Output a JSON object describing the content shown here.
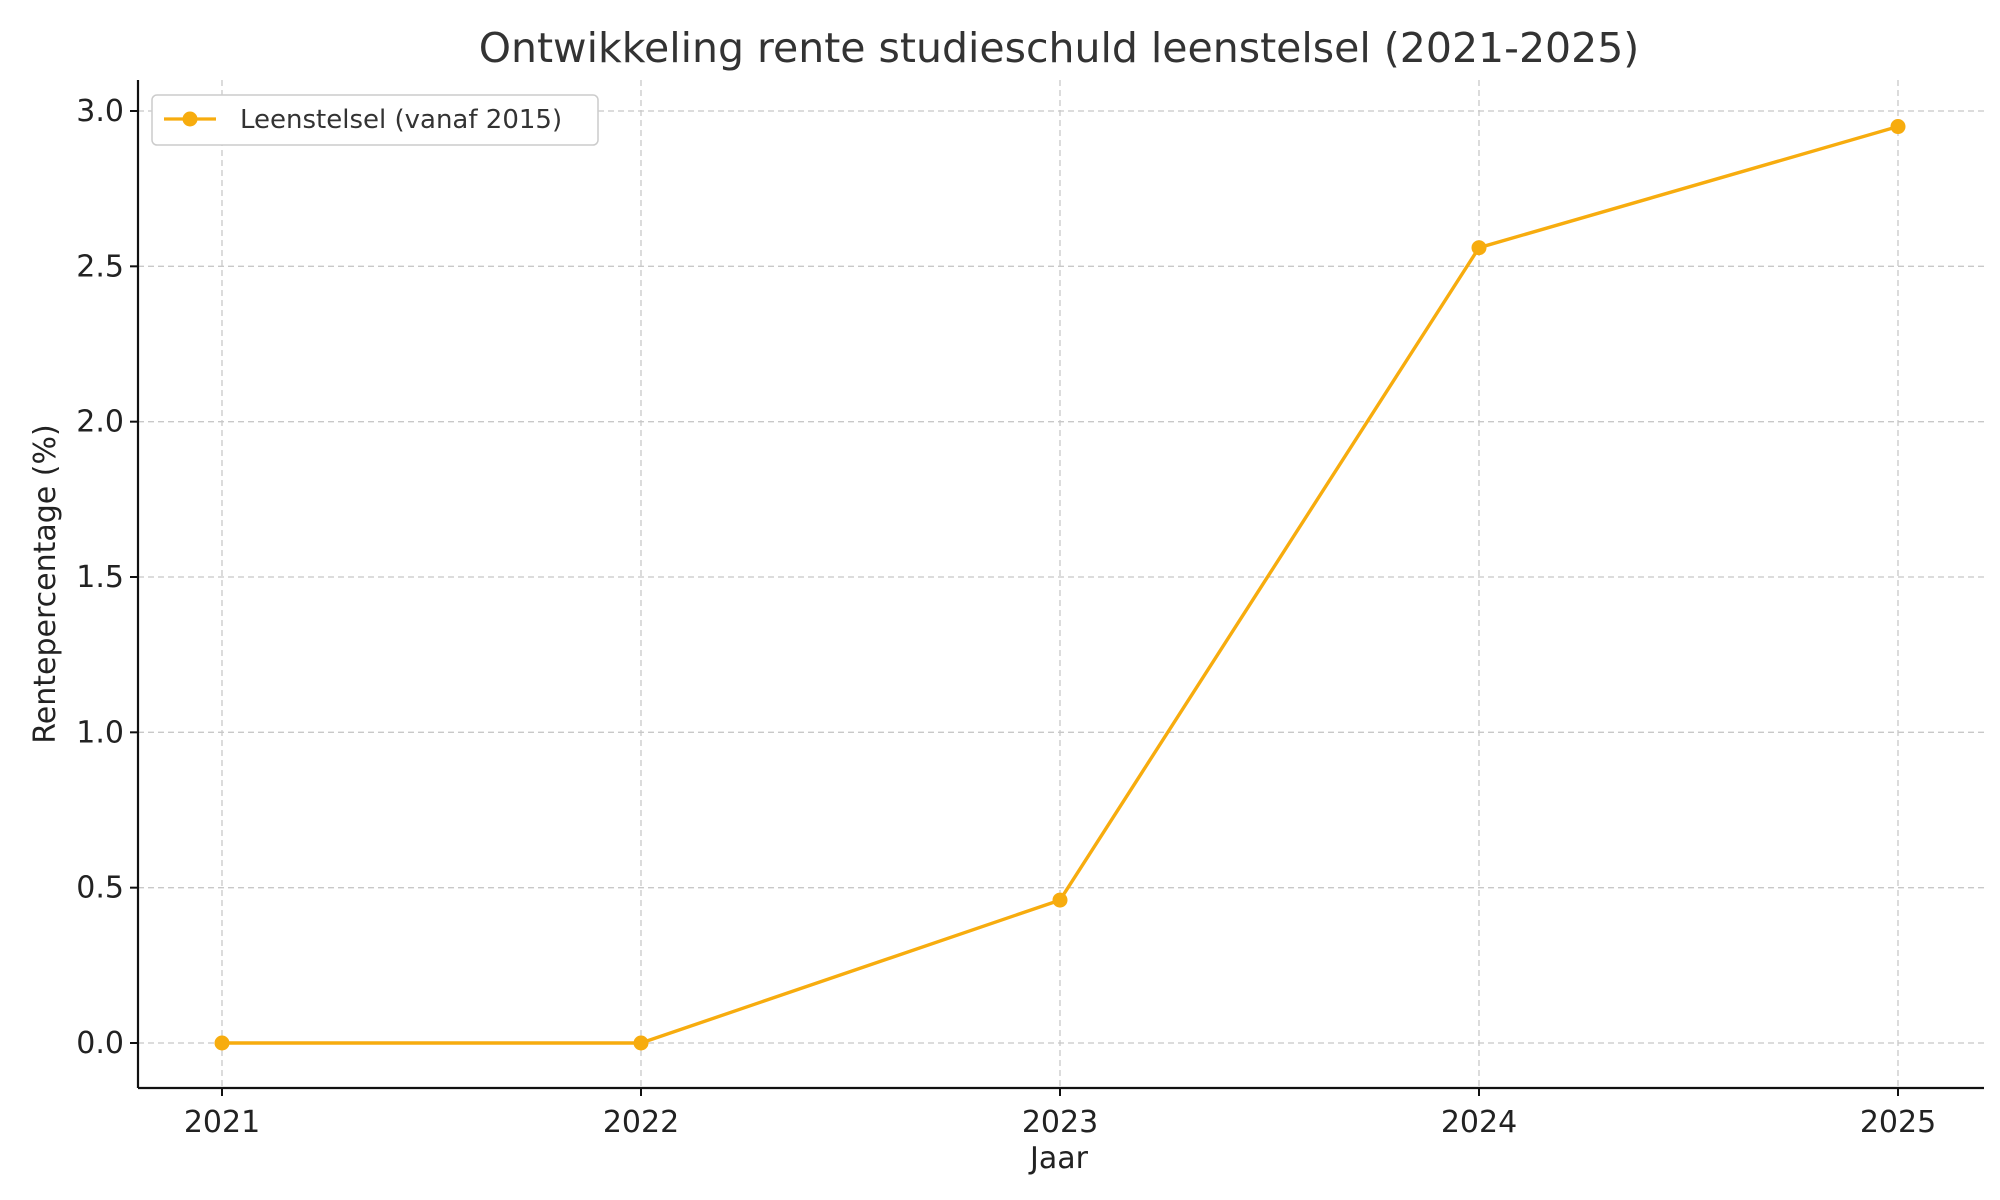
{
  "chart_data": {
    "type": "line",
    "title": "Ontwikkeling rente studieschuld leenstelsel (2021-2025)",
    "xlabel": "Jaar",
    "ylabel": "Rentepercentage (%)",
    "categories": [
      "2021",
      "2022",
      "2023",
      "2024",
      "2025"
    ],
    "series": [
      {
        "name": "Leenstelsel (vanaf 2015)",
        "values": [
          0.0,
          0.0,
          0.46,
          2.56,
          2.95
        ],
        "color": "#f7ac0e"
      }
    ],
    "ylim": [
      -0.15,
      3.1
    ],
    "yticks": [
      "0.0",
      "0.5",
      "1.0",
      "1.5",
      "2.0",
      "2.5",
      "3.0"
    ],
    "grid": true,
    "legend_position": "top-left"
  }
}
